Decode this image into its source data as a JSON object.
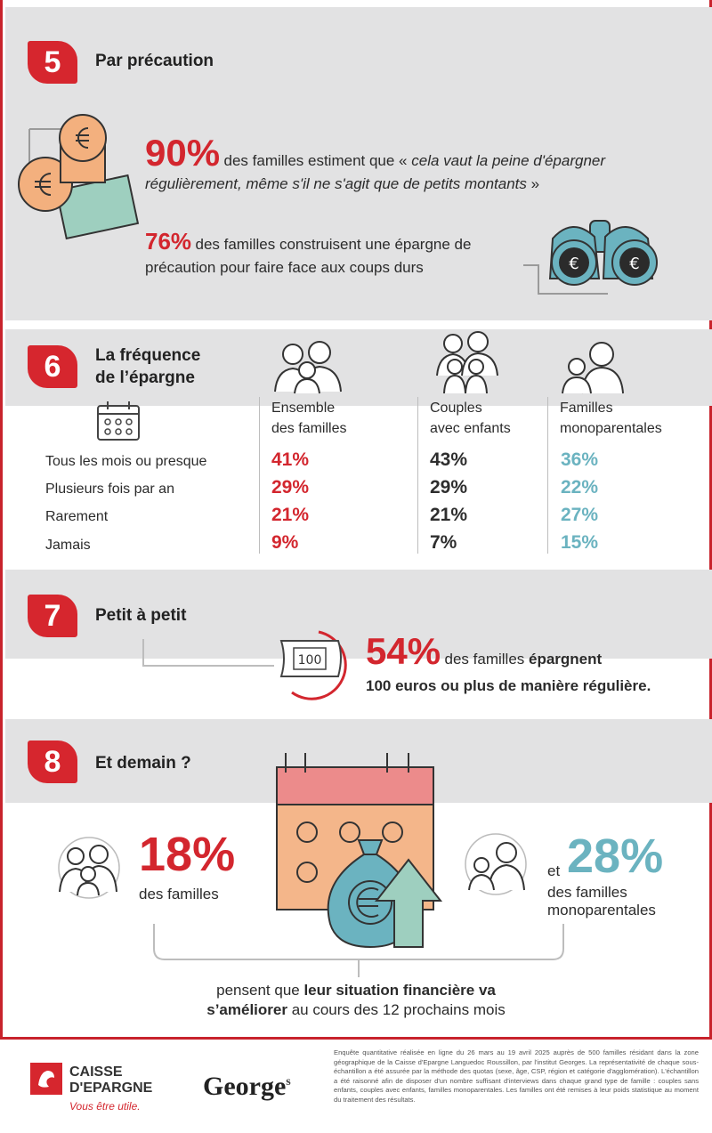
{
  "sections": {
    "s5": {
      "number": "5",
      "title": "Par précaution",
      "stat1_value": "90%",
      "stat1_text_a": "des familles estiment que « ",
      "stat1_quote": "cela vaut la peine d'épargner régulièrement, même s'il ne s'agit que de petits montants",
      "stat1_text_b": " »",
      "stat2_value": "76%",
      "stat2_text": "des familles construisent une épargne de précaution pour faire face aux coups durs"
    },
    "s6": {
      "number": "6",
      "title_line1": "La fréquence",
      "title_line2": "de l’épargne",
      "columns": [
        {
          "line1": "Ensemble",
          "line2": "des familles"
        },
        {
          "line1": "Couples",
          "line2": "avec enfants"
        },
        {
          "line1": "Familles",
          "line2": "monoparentales"
        }
      ],
      "rows": [
        {
          "label": "Tous les mois ou presque",
          "values": [
            "41%",
            "43%",
            "36%"
          ]
        },
        {
          "label": "Plusieurs fois par an",
          "values": [
            "29%",
            "29%",
            "22%"
          ]
        },
        {
          "label": "Rarement",
          "values": [
            "21%",
            "21%",
            "27%"
          ]
        },
        {
          "label": "Jamais",
          "values": [
            "9%",
            "7%",
            "15%"
          ]
        }
      ]
    },
    "s7": {
      "number": "7",
      "title": "Petit à petit",
      "banknote_label": "100",
      "stat_value": "54%",
      "stat_text_a": "des familles ",
      "stat_text_bold": "épargnent",
      "stat_text_line2": "100 euros ou plus de manière régulière."
    },
    "s8": {
      "number": "8",
      "title": "Et demain ?",
      "left_value": "18%",
      "left_text": "des familles",
      "right_prefix": "et",
      "right_value": "28%",
      "right_text_line1": "des familles",
      "right_text_line2": "monoparentales",
      "conclusion_a": "pensent que ",
      "conclusion_bold1": "leur situation financière va",
      "conclusion_bold2": "s’améliorer",
      "conclusion_b": " au cours des 12 prochains mois"
    }
  },
  "footer": {
    "brand_line1": "CAISSE",
    "brand_line2": "D'EPARGNE",
    "brand_tagline": "Vous être utile.",
    "partner": "George",
    "partner_suffix": "s",
    "note": "Enquête quantitative réalisée en ligne du 26 mars au 19 avril 2025 auprès de 500 familles résidant dans la zone géographique de la Caisse d'Epargne Languedoc Roussillon, par l'institut Georges. La représentativité de chaque sous-échantillon a été assurée par la méthode des quotas (sexe, âge, CSP, région et catégorie d'agglomération). L'échantillon a été raisonné afin de disposer d'un nombre suffisant d'interviews dans chaque grand type de famille : couples sans enfants, couples avec enfants, familles monoparentales. Les familles ont été remises à leur poids statistique au moment du traitement des résultats."
  },
  "colors": {
    "red": "#d3262e",
    "teal": "#6bb3c0",
    "grey_band": "#e2e2e3",
    "salmon": "#f3b07e",
    "calendar_top": "#ec8b8b",
    "calendar_body": "#f4b68a",
    "mint": "#9ecfbf"
  }
}
